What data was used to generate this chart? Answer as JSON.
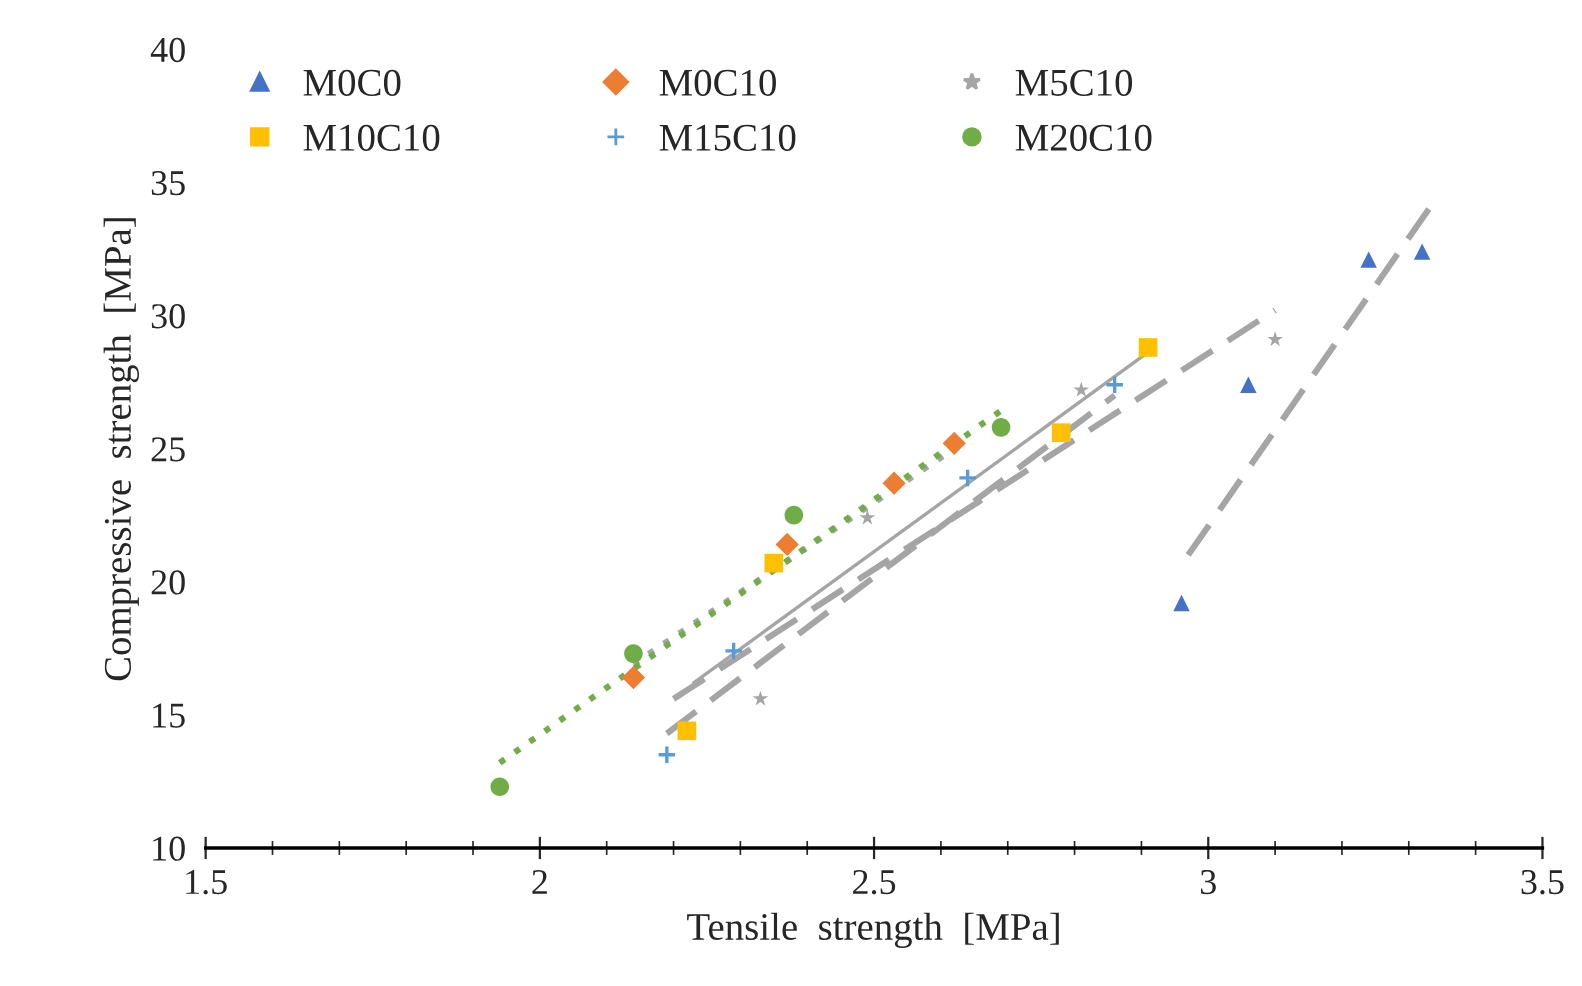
{
  "chart_data": {
    "type": "scatter",
    "xlabel": "Tensile  strength  [MPa]",
    "ylabel": "Compressive  strength  [MPa]",
    "xlim": [
      1.5,
      3.5
    ],
    "xticks": [
      1.5,
      2,
      2.5,
      3,
      3.5
    ],
    "ylim": [
      10,
      40
    ],
    "yticks": [
      10,
      15,
      20,
      25,
      30,
      35,
      40
    ],
    "grid": false,
    "legend": "top",
    "series": [
      {
        "name": "M0C0",
        "color": "#4472c4",
        "marker": "triangle",
        "x": [
          2.96,
          3.06,
          3.24,
          3.32
        ],
        "values": [
          19.2,
          27.4,
          32.1,
          32.4
        ]
      },
      {
        "name": "M0C10",
        "color": "#ed7d31",
        "marker": "diamond",
        "x": [
          2.14,
          2.37,
          2.53,
          2.62
        ],
        "values": [
          16.4,
          21.4,
          23.7,
          25.2
        ]
      },
      {
        "name": "M5C10",
        "color": "#a5a5a5",
        "marker": "star",
        "x": [
          2.33,
          2.49,
          2.81,
          3.1
        ],
        "values": [
          15.6,
          22.4,
          27.2,
          29.1
        ]
      },
      {
        "name": "M10C10",
        "color": "#ffc000",
        "marker": "square",
        "x": [
          2.22,
          2.35,
          2.78,
          2.91
        ],
        "values": [
          14.4,
          20.7,
          25.6,
          28.8
        ]
      },
      {
        "name": "M15C10",
        "color": "#5b9bd5",
        "marker": "cross",
        "x": [
          2.19,
          2.29,
          2.64,
          2.86
        ],
        "values": [
          13.5,
          17.4,
          23.9,
          27.4
        ]
      },
      {
        "name": "M20C10",
        "color": "#70ad47",
        "marker": "circle",
        "x": [
          1.94,
          2.14,
          2.38,
          2.69
        ],
        "values": [
          12.3,
          17.3,
          22.5,
          25.8
        ]
      },
      {
        "type": "line",
        "color": "#a5a5a5",
        "line_style": "dashed",
        "x": [
          2.97,
          3.33
        ],
        "values": [
          21.0,
          34.0
        ]
      },
      {
        "type": "line",
        "color": "#a5a5a5",
        "line_style": "dotted",
        "x": [
          2.14,
          2.62
        ],
        "values": [
          16.9,
          25.0
        ]
      },
      {
        "type": "line",
        "color": "#a5a5a5",
        "line_style": "dashed",
        "x": [
          2.2,
          3.1
        ],
        "values": [
          15.6,
          30.2
        ]
      },
      {
        "type": "line",
        "color": "#a5a5a5",
        "line_style": "solid",
        "x": [
          2.23,
          2.92
        ],
        "values": [
          16.2,
          28.8
        ]
      },
      {
        "type": "line",
        "color": "#a5a5a5",
        "line_style": "dashed",
        "x": [
          2.19,
          2.86
        ],
        "values": [
          14.3,
          27.0
        ]
      },
      {
        "type": "line",
        "color": "#70ad47",
        "line_style": "dotted",
        "x": [
          1.94,
          2.7
        ],
        "values": [
          13.2,
          26.6
        ]
      }
    ]
  }
}
